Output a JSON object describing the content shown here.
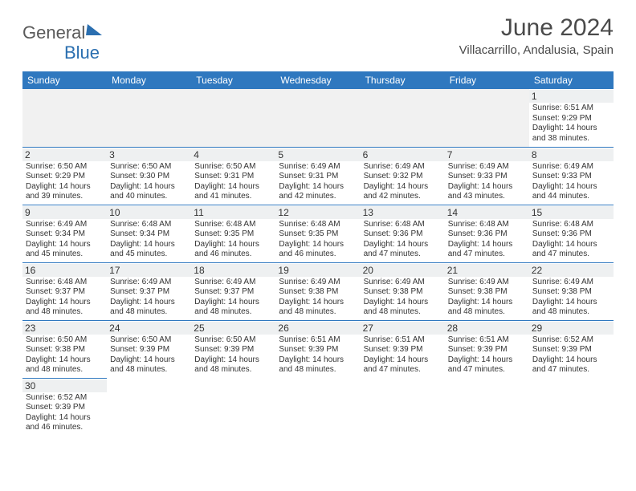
{
  "logo": {
    "part1": "General",
    "part2": "Blue"
  },
  "title": "June 2024",
  "location": "Villacarrillo, Andalusia, Spain",
  "header_bg": "#2f78bf",
  "days": [
    "Sunday",
    "Monday",
    "Tuesday",
    "Wednesday",
    "Thursday",
    "Friday",
    "Saturday"
  ],
  "weeks": [
    [
      null,
      null,
      null,
      null,
      null,
      null,
      {
        "n": "1",
        "sr": "6:51 AM",
        "ss": "9:29 PM",
        "dl": "14 hours and 38 minutes."
      }
    ],
    [
      {
        "n": "2",
        "sr": "6:50 AM",
        "ss": "9:29 PM",
        "dl": "14 hours and 39 minutes."
      },
      {
        "n": "3",
        "sr": "6:50 AM",
        "ss": "9:30 PM",
        "dl": "14 hours and 40 minutes."
      },
      {
        "n": "4",
        "sr": "6:50 AM",
        "ss": "9:31 PM",
        "dl": "14 hours and 41 minutes."
      },
      {
        "n": "5",
        "sr": "6:49 AM",
        "ss": "9:31 PM",
        "dl": "14 hours and 42 minutes."
      },
      {
        "n": "6",
        "sr": "6:49 AM",
        "ss": "9:32 PM",
        "dl": "14 hours and 42 minutes."
      },
      {
        "n": "7",
        "sr": "6:49 AM",
        "ss": "9:33 PM",
        "dl": "14 hours and 43 minutes."
      },
      {
        "n": "8",
        "sr": "6:49 AM",
        "ss": "9:33 PM",
        "dl": "14 hours and 44 minutes."
      }
    ],
    [
      {
        "n": "9",
        "sr": "6:49 AM",
        "ss": "9:34 PM",
        "dl": "14 hours and 45 minutes."
      },
      {
        "n": "10",
        "sr": "6:48 AM",
        "ss": "9:34 PM",
        "dl": "14 hours and 45 minutes."
      },
      {
        "n": "11",
        "sr": "6:48 AM",
        "ss": "9:35 PM",
        "dl": "14 hours and 46 minutes."
      },
      {
        "n": "12",
        "sr": "6:48 AM",
        "ss": "9:35 PM",
        "dl": "14 hours and 46 minutes."
      },
      {
        "n": "13",
        "sr": "6:48 AM",
        "ss": "9:36 PM",
        "dl": "14 hours and 47 minutes."
      },
      {
        "n": "14",
        "sr": "6:48 AM",
        "ss": "9:36 PM",
        "dl": "14 hours and 47 minutes."
      },
      {
        "n": "15",
        "sr": "6:48 AM",
        "ss": "9:36 PM",
        "dl": "14 hours and 47 minutes."
      }
    ],
    [
      {
        "n": "16",
        "sr": "6:48 AM",
        "ss": "9:37 PM",
        "dl": "14 hours and 48 minutes."
      },
      {
        "n": "17",
        "sr": "6:49 AM",
        "ss": "9:37 PM",
        "dl": "14 hours and 48 minutes."
      },
      {
        "n": "18",
        "sr": "6:49 AM",
        "ss": "9:37 PM",
        "dl": "14 hours and 48 minutes."
      },
      {
        "n": "19",
        "sr": "6:49 AM",
        "ss": "9:38 PM",
        "dl": "14 hours and 48 minutes."
      },
      {
        "n": "20",
        "sr": "6:49 AM",
        "ss": "9:38 PM",
        "dl": "14 hours and 48 minutes."
      },
      {
        "n": "21",
        "sr": "6:49 AM",
        "ss": "9:38 PM",
        "dl": "14 hours and 48 minutes."
      },
      {
        "n": "22",
        "sr": "6:49 AM",
        "ss": "9:38 PM",
        "dl": "14 hours and 48 minutes."
      }
    ],
    [
      {
        "n": "23",
        "sr": "6:50 AM",
        "ss": "9:38 PM",
        "dl": "14 hours and 48 minutes."
      },
      {
        "n": "24",
        "sr": "6:50 AM",
        "ss": "9:39 PM",
        "dl": "14 hours and 48 minutes."
      },
      {
        "n": "25",
        "sr": "6:50 AM",
        "ss": "9:39 PM",
        "dl": "14 hours and 48 minutes."
      },
      {
        "n": "26",
        "sr": "6:51 AM",
        "ss": "9:39 PM",
        "dl": "14 hours and 48 minutes."
      },
      {
        "n": "27",
        "sr": "6:51 AM",
        "ss": "9:39 PM",
        "dl": "14 hours and 47 minutes."
      },
      {
        "n": "28",
        "sr": "6:51 AM",
        "ss": "9:39 PM",
        "dl": "14 hours and 47 minutes."
      },
      {
        "n": "29",
        "sr": "6:52 AM",
        "ss": "9:39 PM",
        "dl": "14 hours and 47 minutes."
      }
    ],
    [
      {
        "n": "30",
        "sr": "6:52 AM",
        "ss": "9:39 PM",
        "dl": "14 hours and 46 minutes."
      },
      null,
      null,
      null,
      null,
      null,
      null
    ]
  ],
  "labels": {
    "sunrise": "Sunrise:",
    "sunset": "Sunset:",
    "daylight": "Daylight:"
  }
}
